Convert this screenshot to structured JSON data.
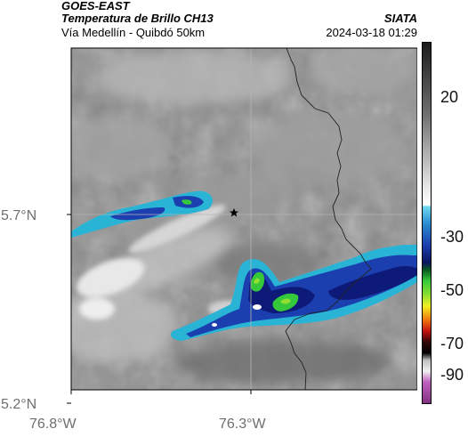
{
  "header": {
    "satellite": "GOES-EAST",
    "product": "Temperatura de Brillo CH13",
    "organization": "SIATA",
    "subtitle": "Vía Medellín - Quibdó 50km",
    "datetime": "2024-03-18 01:29"
  },
  "map": {
    "lat_ticks": [
      "5.7°N",
      "5.2°N"
    ],
    "lon_ticks": [
      "76.8°W",
      "76.3°W"
    ],
    "marker_icon": "star-icon",
    "colors": {
      "background": "#8a8a8a",
      "frame": "#000000",
      "gridline": "#b4b4b4",
      "border": "#222222",
      "cloud_cyan": "#29b4d6",
      "cloud_blue": "#1c3fb0",
      "cloud_navy": "#0d1a78",
      "cloud_green": "#35c83a",
      "cloud_lime": "#8fdf30"
    }
  },
  "colorbar": {
    "ticks": [
      "20",
      "-30",
      "-50",
      "-70",
      "-90"
    ]
  }
}
